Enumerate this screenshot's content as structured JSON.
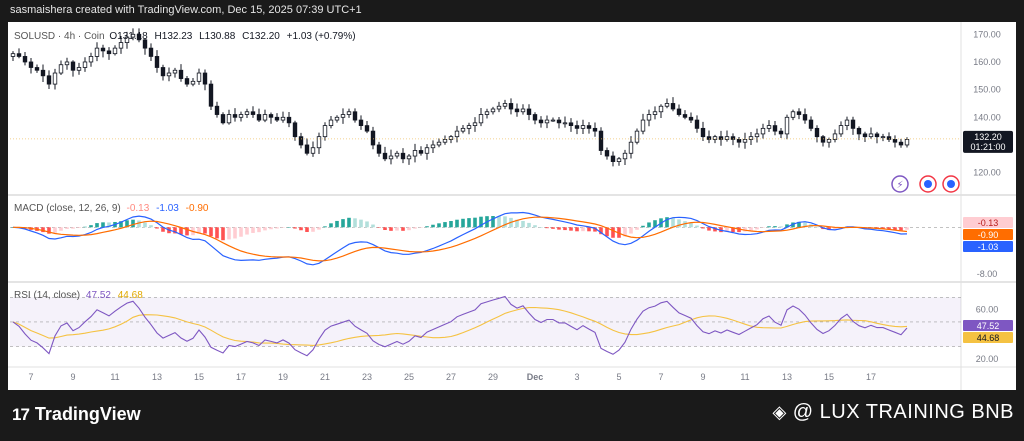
{
  "header": {
    "text": "sasmaishera created with TradingView.com, Dec 15, 2025 07:39 UTC+1"
  },
  "colors": {
    "up": "#089981",
    "down": "#f23645",
    "macd": "#2962ff",
    "signal": "#ff6d00",
    "rsi": "#7e57c2",
    "rsi_ma": "#f5c242",
    "hist_up_strong": "#26a69a",
    "hist_up_weak": "#b2dfdb",
    "hist_down_strong": "#ff5252",
    "hist_down_weak": "#ffcdd2"
  },
  "chart_data": [
    {
      "type": "candlestick",
      "title": "SOLUSD · 4h · Coinbase",
      "legend": {
        "symbol": "SOLUSD · 4h · Coin",
        "o": "O131.18",
        "h": "H132.23",
        "l": "L130.88",
        "c": "C132.20",
        "chg": "+1.03 (+0.79%)"
      },
      "ylim": [
        113,
        173
      ],
      "y_ticks": [
        "170.00",
        "160.00",
        "150.00",
        "140.00",
        "130.00",
        "120.00"
      ],
      "y_tick_values": [
        170,
        160,
        150,
        140,
        130,
        120
      ],
      "last_price": {
        "value": 132.2,
        "label": "132.20",
        "countdown": "01:21:00"
      },
      "closes": [
        163,
        162,
        160,
        158,
        157,
        155,
        152,
        156,
        159,
        160,
        157,
        158,
        160,
        162,
        165,
        164,
        163,
        165,
        167,
        169,
        170,
        168,
        165,
        162,
        158,
        155,
        156,
        157,
        154,
        152,
        153,
        156,
        152,
        144,
        141,
        138,
        141,
        140,
        141,
        142,
        141,
        139,
        141,
        140,
        139,
        140,
        138,
        133,
        130,
        127,
        129,
        133,
        137,
        139,
        140,
        141,
        142,
        139,
        137,
        135,
        130,
        127,
        125,
        126,
        127,
        125,
        126,
        128,
        127,
        129,
        130,
        131,
        132,
        133,
        135,
        136,
        137,
        138,
        141,
        142,
        143,
        144,
        145,
        143,
        142,
        143,
        141,
        139,
        138,
        139,
        139,
        138,
        138,
        137,
        136,
        137,
        136,
        135,
        128,
        126,
        124,
        125,
        127,
        131,
        135,
        139,
        141,
        142,
        144,
        145,
        143,
        141,
        140,
        139,
        136,
        133,
        132,
        133,
        132,
        133,
        132,
        131,
        132,
        133,
        134,
        136,
        137,
        135,
        134,
        140,
        142,
        141,
        139,
        136,
        133,
        131,
        132,
        134,
        137,
        139,
        136,
        134,
        133,
        134,
        133,
        133,
        132,
        131,
        130,
        132
      ],
      "x_ticks": [
        {
          "i": 3,
          "label": "7"
        },
        {
          "i": 10,
          "label": "9"
        },
        {
          "i": 17,
          "label": "11"
        },
        {
          "i": 24,
          "label": "13"
        },
        {
          "i": 31,
          "label": "15"
        },
        {
          "i": 38,
          "label": "17"
        },
        {
          "i": 45,
          "label": "19"
        },
        {
          "i": 52,
          "label": "21"
        },
        {
          "i": 59,
          "label": "23"
        },
        {
          "i": 66,
          "label": "25"
        },
        {
          "i": 73,
          "label": "27"
        },
        {
          "i": 80,
          "label": "29"
        },
        {
          "i": 87,
          "label": "Dec"
        },
        {
          "i": 94,
          "label": "3"
        },
        {
          "i": 101,
          "label": "5"
        },
        {
          "i": 108,
          "label": "7"
        },
        {
          "i": 115,
          "label": "9"
        },
        {
          "i": 122,
          "label": "11"
        },
        {
          "i": 129,
          "label": "13"
        },
        {
          "i": 136,
          "label": "15"
        },
        {
          "i": 143,
          "label": "17"
        }
      ]
    },
    {
      "type": "macd",
      "legend": {
        "name": "MACD (close, 12, 26, 9)",
        "hist": "-0.13",
        "macd": "-1.03",
        "signal": "-0.90"
      },
      "ylim": [
        -9,
        5
      ],
      "y_ticks": [
        "-8.00"
      ],
      "y_tick_values": [
        -8
      ],
      "labels": {
        "hist": "-0.13",
        "signal": "-0.90",
        "macd": "-1.03"
      }
    },
    {
      "type": "rsi",
      "legend": {
        "name": "RSI (14, close)",
        "rsi": "47.52",
        "ma": "44.68"
      },
      "ylim": [
        15,
        80
      ],
      "y_ticks": [
        "60.00",
        "20.00"
      ],
      "y_tick_values": [
        60,
        20
      ],
      "band": [
        30,
        70
      ],
      "labels": {
        "rsi": "47.52",
        "ma": "44.68"
      }
    }
  ],
  "footer": {
    "brand": "TradingView",
    "watermark": "@ LUX TRAINING BNB"
  }
}
